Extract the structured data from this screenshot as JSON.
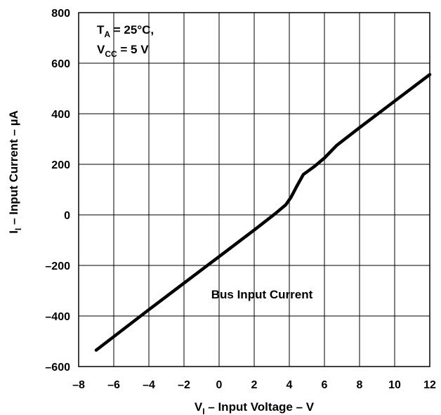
{
  "chart_data": {
    "type": "line",
    "xlabel": {
      "main": "V",
      "sub": "I",
      "rest": " – Input Voltage – V"
    },
    "ylabel": {
      "main": "I",
      "sub": "I",
      "rest": " – Input Current – µA"
    },
    "xlim": [
      -8,
      12
    ],
    "ylim": [
      -600,
      800
    ],
    "xticks": [
      -8,
      -6,
      -4,
      -2,
      0,
      2,
      4,
      6,
      8,
      10,
      12
    ],
    "yticks": [
      -600,
      -400,
      -200,
      0,
      200,
      400,
      600,
      800
    ],
    "x_tick_labels": [
      "–8",
      "–6",
      "–4",
      "–2",
      "0",
      "2",
      "4",
      "6",
      "8",
      "10",
      "12"
    ],
    "y_tick_labels": [
      "–600",
      "–400",
      "–200",
      "0",
      "200",
      "400",
      "600",
      "800"
    ],
    "grid": true,
    "conditions": {
      "line1": {
        "main": "T",
        "sub": "A",
        "rest": " = 25°C,"
      },
      "line2": {
        "main": "V",
        "sub": "CC",
        "rest": " = 5 V"
      }
    },
    "curve_label": "Bus Input Current",
    "series": [
      {
        "x": [
          -7,
          -4,
          -2,
          0,
          2,
          3.2,
          3.8,
          4.1,
          4.4,
          4.8,
          5.4,
          6.0,
          6.7,
          8,
          10,
          12
        ],
        "y": [
          -535,
          -375,
          -270,
          -165,
          -60,
          5,
          40,
          70,
          110,
          160,
          190,
          225,
          275,
          345,
          450,
          555
        ]
      }
    ],
    "colors": {
      "line": "#000000",
      "grid": "#000000"
    }
  }
}
